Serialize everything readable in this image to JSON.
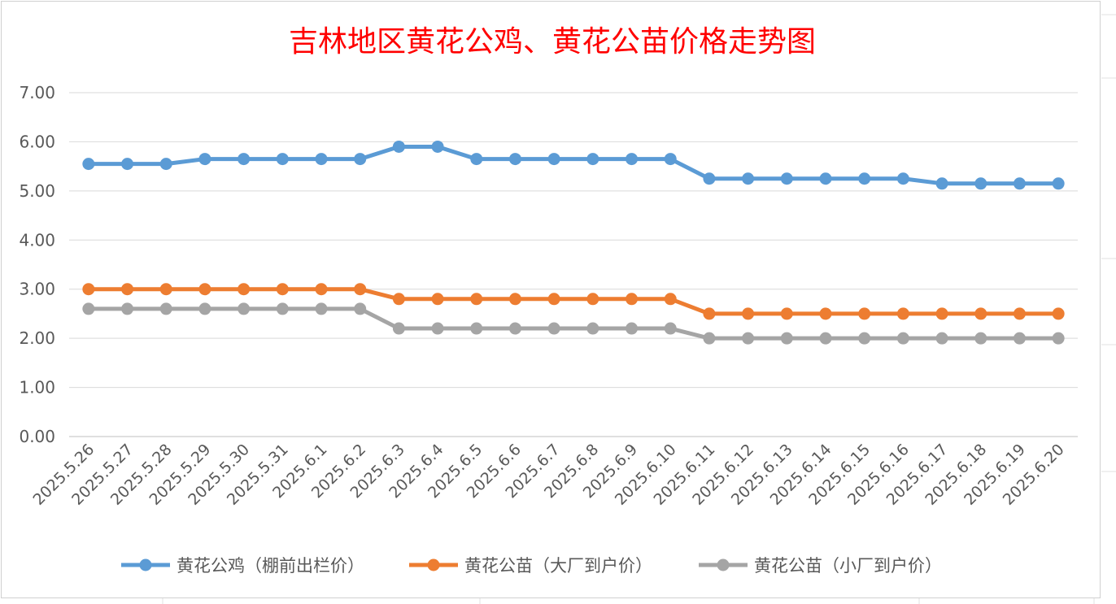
{
  "chart_data": {
    "type": "line",
    "title": "吉林地区黄花公鸡、黄花公苗价格走势图",
    "xlabel": "",
    "ylabel": "",
    "categories": [
      "2025.5.26",
      "2025.5.27",
      "2025.5.28",
      "2025.5.29",
      "2025.5.30",
      "2025.5.31",
      "2025.6.1",
      "2025.6.2",
      "2025.6.3",
      "2025.6.4",
      "2025.6.5",
      "2025.6.6",
      "2025.6.7",
      "2025.6.8",
      "2025.6.9",
      "2025.6.10",
      "2025.6.11",
      "2025.6.12",
      "2025.6.13",
      "2025.6.14",
      "2025.6.15",
      "2025.6.16",
      "2025.6.17",
      "2025.6.18",
      "2025.6.19",
      "2025.6.20"
    ],
    "y_ticks": [
      "0.00",
      "1.00",
      "2.00",
      "3.00",
      "4.00",
      "5.00",
      "6.00",
      "7.00"
    ],
    "ylim": [
      0,
      7
    ],
    "grid": true,
    "legend_position": "bottom",
    "series": [
      {
        "name": "黄花公鸡（棚前出栏价）",
        "color": "#5b9bd5",
        "values": [
          5.55,
          5.55,
          5.55,
          5.65,
          5.65,
          5.65,
          5.65,
          5.65,
          5.9,
          5.9,
          5.65,
          5.65,
          5.65,
          5.65,
          5.65,
          5.65,
          5.25,
          5.25,
          5.25,
          5.25,
          5.25,
          5.25,
          5.15,
          5.15,
          5.15,
          5.15
        ]
      },
      {
        "name": "黄花公苗（大厂到户价）",
        "color": "#ed7d31",
        "values": [
          3.0,
          3.0,
          3.0,
          3.0,
          3.0,
          3.0,
          3.0,
          3.0,
          2.8,
          2.8,
          2.8,
          2.8,
          2.8,
          2.8,
          2.8,
          2.8,
          2.5,
          2.5,
          2.5,
          2.5,
          2.5,
          2.5,
          2.5,
          2.5,
          2.5,
          2.5
        ]
      },
      {
        "name": "黄花公苗（小厂到户价）",
        "color": "#a5a5a5",
        "values": [
          2.6,
          2.6,
          2.6,
          2.6,
          2.6,
          2.6,
          2.6,
          2.6,
          2.2,
          2.2,
          2.2,
          2.2,
          2.2,
          2.2,
          2.2,
          2.2,
          2.0,
          2.0,
          2.0,
          2.0,
          2.0,
          2.0,
          2.0,
          2.0,
          2.0,
          2.0
        ]
      }
    ]
  }
}
